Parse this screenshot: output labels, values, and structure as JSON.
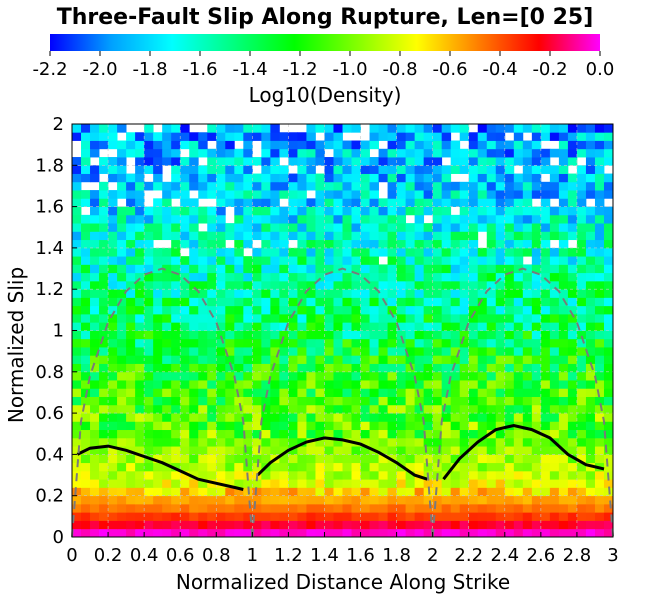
{
  "chart_data": {
    "type": "heatmap",
    "title": "Three-Fault Slip Along Rupture, Len=[0 25]",
    "xlabel": "Normalized Distance Along Strike",
    "ylabel": "Normalized Slip",
    "xlim": [
      0,
      3
    ],
    "ylim": [
      0,
      2
    ],
    "x_ticks": [
      "0",
      "0.2",
      "0.4",
      "0.6",
      "0.8",
      "1",
      "1.2",
      "1.4",
      "1.6",
      "1.8",
      "2",
      "2.2",
      "2.4",
      "2.6",
      "2.8",
      "3"
    ],
    "y_ticks": [
      "0",
      "0.2",
      "0.4",
      "0.6",
      "0.8",
      "1",
      "1.2",
      "1.4",
      "1.6",
      "1.8",
      "2"
    ],
    "colorbar": {
      "label": "Log10(Density)",
      "range": [
        -2.2,
        0.0
      ],
      "ticks": [
        "-2.2",
        "-2.0",
        "-1.8",
        "-1.6",
        "-1.4",
        "-1.2",
        "-1.0",
        "-0.8",
        "-0.6",
        "-0.4",
        "-0.2",
        "0.0"
      ],
      "stops": [
        "#0000ff",
        "#00a0ff",
        "#00ffff",
        "#00ff80",
        "#00ff00",
        "#80ff00",
        "#ffff00",
        "#ff8000",
        "#ff0000",
        "#ff00ff"
      ]
    },
    "grid": true,
    "density_profile": {
      "description_levels_by_slip": [
        {
          "slip": 0.02,
          "log10_density": -0.05
        },
        {
          "slip": 0.06,
          "log10_density": -0.2
        },
        {
          "slip": 0.1,
          "log10_density": -0.35
        },
        {
          "slip": 0.15,
          "log10_density": -0.5
        },
        {
          "slip": 0.2,
          "log10_density": -0.6
        },
        {
          "slip": 0.25,
          "log10_density": -0.75
        },
        {
          "slip": 0.3,
          "log10_density": -0.85
        },
        {
          "slip": 0.4,
          "log10_density": -0.95
        },
        {
          "slip": 0.5,
          "log10_density": -1.05
        },
        {
          "slip": 0.6,
          "log10_density": -1.1
        },
        {
          "slip": 0.7,
          "log10_density": -1.15
        },
        {
          "slip": 0.8,
          "log10_density": -1.2
        },
        {
          "slip": 0.9,
          "log10_density": -1.3
        },
        {
          "slip": 1.0,
          "log10_density": -1.4
        },
        {
          "slip": 1.2,
          "log10_density": -1.5
        },
        {
          "slip": 1.4,
          "log10_density": -1.6
        },
        {
          "slip": 1.6,
          "log10_density": -1.75
        },
        {
          "slip": 1.8,
          "log10_density": -1.85
        },
        {
          "slip": 2.0,
          "log10_density": -1.9
        }
      ]
    },
    "series": [
      {
        "style": "solid black",
        "segments": [
          {
            "x": [
              0.03,
              0.1,
              0.2,
              0.3,
              0.4,
              0.5,
              0.6,
              0.7,
              0.8,
              0.9,
              0.95
            ],
            "y": [
              0.4,
              0.43,
              0.44,
              0.42,
              0.39,
              0.36,
              0.32,
              0.28,
              0.26,
              0.24,
              0.23
            ]
          },
          {
            "x": [
              1.03,
              1.1,
              1.2,
              1.3,
              1.4,
              1.5,
              1.6,
              1.7,
              1.8,
              1.9,
              1.97
            ],
            "y": [
              0.3,
              0.36,
              0.42,
              0.46,
              0.48,
              0.47,
              0.45,
              0.41,
              0.36,
              0.3,
              0.28
            ]
          },
          {
            "x": [
              2.06,
              2.15,
              2.25,
              2.35,
              2.45,
              2.55,
              2.65,
              2.75,
              2.85,
              2.95
            ],
            "y": [
              0.28,
              0.38,
              0.46,
              0.52,
              0.54,
              0.52,
              0.48,
              0.4,
              0.35,
              0.33
            ]
          }
        ]
      },
      {
        "style": "dashed gray",
        "segments": [
          {
            "x": [
              0.0,
              0.05,
              0.1,
              0.2,
              0.3,
              0.4,
              0.5,
              0.6,
              0.7,
              0.8,
              0.9,
              0.95,
              1.0
            ],
            "y": [
              0.0,
              0.56,
              0.78,
              1.04,
              1.19,
              1.27,
              1.3,
              1.27,
              1.19,
              1.04,
              0.78,
              0.56,
              0.0
            ]
          },
          {
            "x": [
              1.0,
              1.05,
              1.1,
              1.2,
              1.3,
              1.4,
              1.5,
              1.6,
              1.7,
              1.8,
              1.9,
              1.95,
              2.0
            ],
            "y": [
              0.0,
              0.56,
              0.78,
              1.04,
              1.19,
              1.27,
              1.3,
              1.27,
              1.19,
              1.04,
              0.78,
              0.56,
              0.0
            ]
          },
          {
            "x": [
              2.0,
              2.05,
              2.1,
              2.2,
              2.3,
              2.4,
              2.5,
              2.6,
              2.7,
              2.8,
              2.9,
              2.95,
              3.0
            ],
            "y": [
              0.0,
              0.56,
              0.78,
              1.04,
              1.19,
              1.27,
              1.3,
              1.27,
              1.19,
              1.04,
              0.78,
              0.56,
              0.0
            ]
          }
        ]
      }
    ]
  }
}
